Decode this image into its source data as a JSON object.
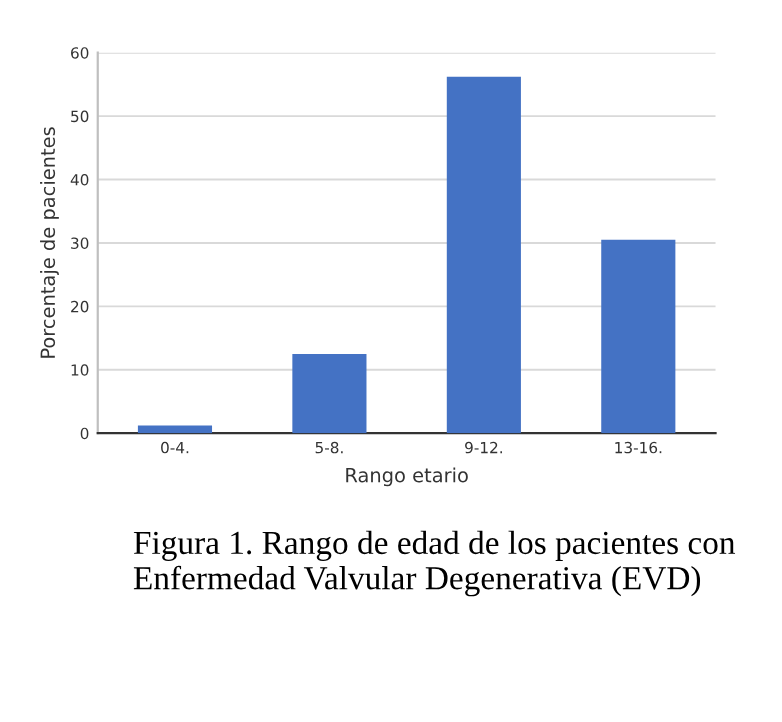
{
  "chart_data": {
    "type": "bar",
    "categories": [
      "0-4.",
      "5-8.",
      "9-12.",
      "13-16."
    ],
    "values": [
      1.2,
      12.5,
      56.2,
      30.5
    ],
    "color": "#4472c4",
    "xlabel": "Rango etario",
    "ylabel": "Porcentaje de pacientes",
    "ylim": [
      0,
      60
    ],
    "yticks": [
      0,
      10,
      20,
      30,
      40,
      50,
      60
    ],
    "grid": "y",
    "annotations": [
      "Figura 1. Rango de edad de los pacientes con Enfermedad Valvular Degenerativa (EVD)"
    ]
  }
}
